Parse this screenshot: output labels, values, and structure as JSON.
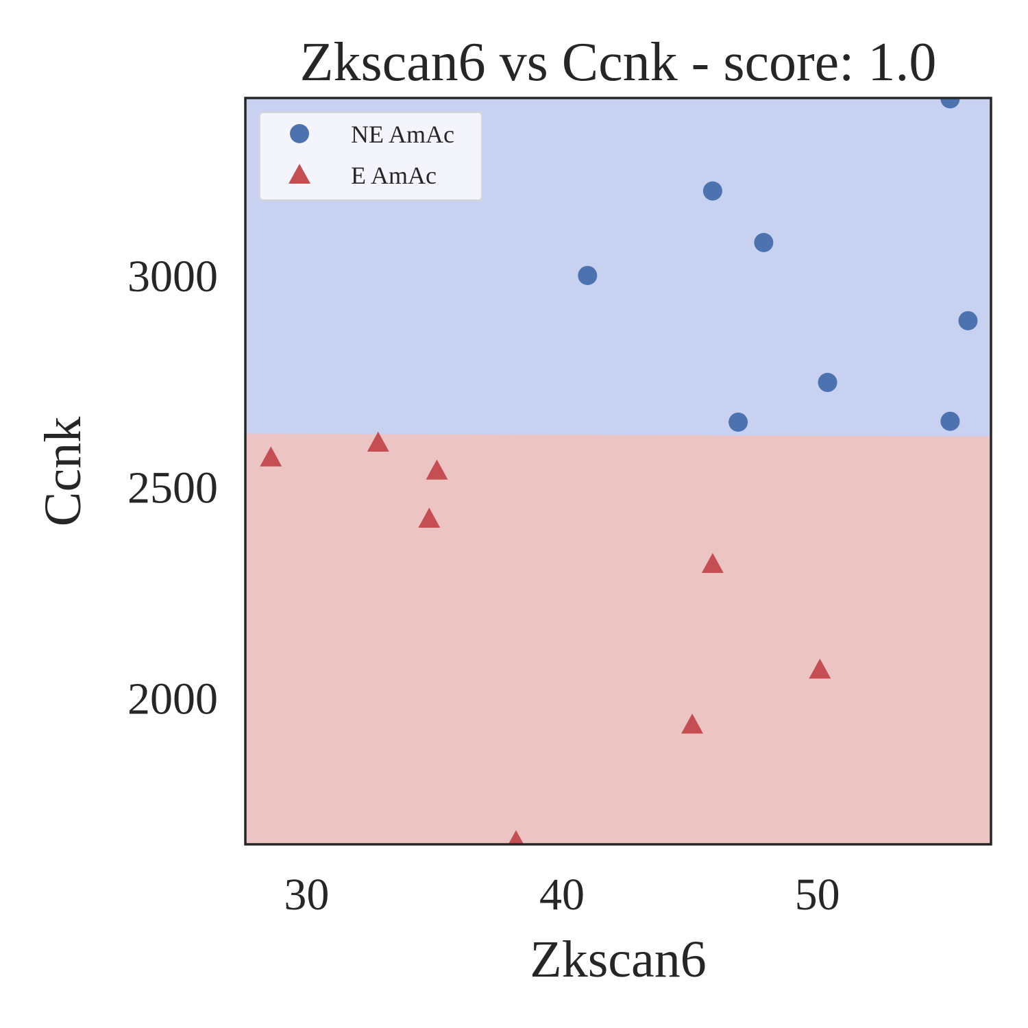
{
  "chart_data": {
    "type": "scatter",
    "title": "Zkscan6 vs Ccnk - score: 1.0",
    "xlabel": "Zkscan6",
    "ylabel": "Ccnk",
    "xlim": [
      27.6,
      56.8
    ],
    "ylim": [
      1654,
      3420
    ],
    "xticks": [
      30,
      40,
      50
    ],
    "yticks": [
      2000,
      2500,
      3000
    ],
    "grid": false,
    "legend_position": "top-left",
    "decision_boundary": {
      "x": [
        27.6,
        56.8
      ],
      "y": [
        2626,
        2619
      ]
    },
    "regions": {
      "upper_color": "#c9d1f0",
      "lower_color": "#edc4c4"
    },
    "series": [
      {
        "name": "NE AmAc",
        "marker": "circle",
        "color": "#4c72b0",
        "points": [
          [
            41.0,
            3000
          ],
          [
            45.9,
            3200
          ],
          [
            47.9,
            3078
          ],
          [
            55.2,
            3418
          ],
          [
            55.9,
            2893
          ],
          [
            50.4,
            2747
          ],
          [
            46.9,
            2653
          ],
          [
            55.2,
            2655
          ]
        ]
      },
      {
        "name": "E AmAc",
        "marker": "triangle",
        "color": "#c44e52",
        "points": [
          [
            28.6,
            2568
          ],
          [
            32.8,
            2603
          ],
          [
            35.1,
            2537
          ],
          [
            34.8,
            2423
          ],
          [
            45.9,
            2316
          ],
          [
            50.1,
            2066
          ],
          [
            45.1,
            1936
          ],
          [
            38.2,
            1660
          ]
        ]
      }
    ]
  }
}
